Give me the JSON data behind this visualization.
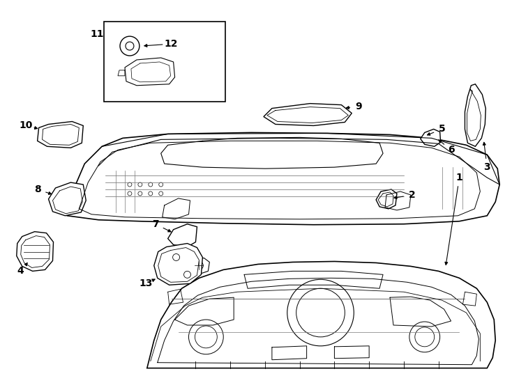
{
  "background_color": "#ffffff",
  "line_color": "#000000",
  "figsize": [
    7.34,
    5.4
  ],
  "dpi": 100
}
